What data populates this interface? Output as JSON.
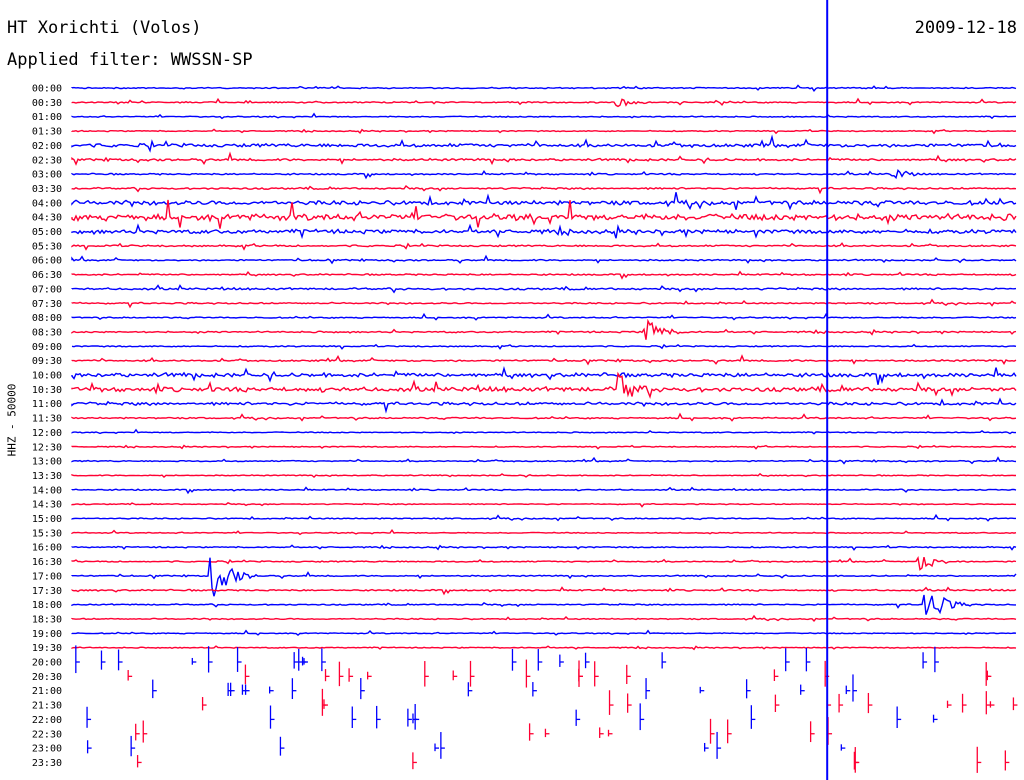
{
  "header": {
    "station_title": "HT Xorichti (Volos)",
    "filter_text": "Applied filter: WWSSN-SP",
    "date": "2009-12-18"
  },
  "chart_data": {
    "type": "line",
    "title": "HT Xorichti (Volos)",
    "subtitle": "Applied filter: WWSSN-SP",
    "date": "2009-12-18",
    "ylabel": "HHZ - 50000",
    "y_tick_labels": [
      "00:00",
      "00:30",
      "01:00",
      "01:30",
      "02:00",
      "02:30",
      "03:00",
      "03:30",
      "04:00",
      "04:30",
      "05:00",
      "05:30",
      "06:00",
      "06:30",
      "07:00",
      "07:30",
      "08:00",
      "08:30",
      "09:00",
      "09:30",
      "10:00",
      "10:30",
      "11:00",
      "11:30",
      "12:00",
      "12:30",
      "13:00",
      "13:30",
      "14:00",
      "14:30",
      "15:00",
      "15:30",
      "16:00",
      "16:30",
      "17:00",
      "17:30",
      "18:00",
      "18:30",
      "19:00",
      "19:30",
      "20:00",
      "20:30",
      "21:00",
      "21:30",
      "22:00",
      "22:30",
      "23:00",
      "23:30"
    ],
    "row_minutes": 30,
    "colors": [
      "#0000ff",
      "#ff0033"
    ],
    "current_time_marker": "19:54",
    "last_full_row": "19:30",
    "noise_level_by_row": [
      0.25,
      0.25,
      0.22,
      0.22,
      0.7,
      0.45,
      0.3,
      0.35,
      0.9,
      1.3,
      0.8,
      0.35,
      0.3,
      0.3,
      0.4,
      0.3,
      0.25,
      0.3,
      0.25,
      0.35,
      0.8,
      0.9,
      0.6,
      0.3,
      0.2,
      0.2,
      0.25,
      0.2,
      0.25,
      0.2,
      0.25,
      0.2,
      0.25,
      0.25,
      0.25,
      0.3,
      0.25,
      0.25,
      0.2,
      0.2
    ],
    "events": [
      {
        "time": "08:30",
        "amplitude": 12
      },
      {
        "time": "10:30",
        "amplitude": 16
      },
      {
        "time": "17:00",
        "amplitude": 22
      },
      {
        "time": "18:00",
        "amplitude": 20
      },
      {
        "time": "16:30",
        "amplitude": 9
      },
      {
        "time": "03:00",
        "amplitude": 6
      },
      {
        "time": "00:30",
        "amplitude": 5
      },
      {
        "time": "17:00",
        "amplitude": 7
      }
    ]
  }
}
